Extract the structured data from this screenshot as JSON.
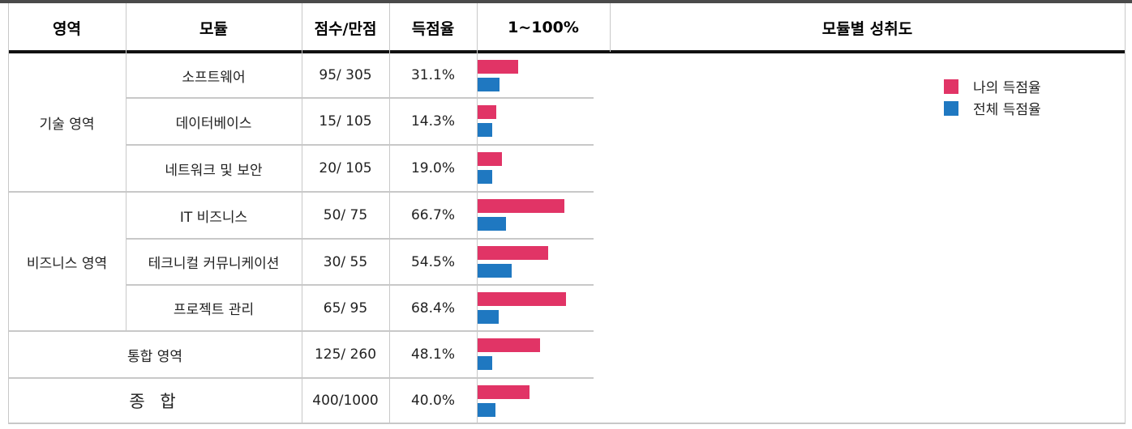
{
  "header": {
    "area": "영역",
    "module": "모듈",
    "score": "점수/만점",
    "rate": "득점율",
    "range": "1~100%",
    "achievement": "모듈별 성취도"
  },
  "areas": {
    "tech": "기술 영역",
    "biz": "비즈니스 영역",
    "integrated": "통합 영역",
    "total": "종 합"
  },
  "rows": [
    {
      "module": "소프트웨어",
      "score": "95/ 305",
      "rate": "31.1%"
    },
    {
      "module": "데이터베이스",
      "score": "15/ 105",
      "rate": "14.3%"
    },
    {
      "module": "네트워크 및 보안",
      "score": "20/ 105",
      "rate": "19.0%"
    },
    {
      "module": "IT 비즈니스",
      "score": "50/ 75",
      "rate": "66.7%"
    },
    {
      "module": "테크니컬 커뮤니케이션",
      "score": "30/ 55",
      "rate": "54.5%"
    },
    {
      "module": "프로젝트 관리",
      "score": "65/ 95",
      "rate": "68.4%"
    },
    {
      "module": "",
      "score": "125/ 260",
      "rate": "48.1%"
    },
    {
      "module": "",
      "score": "400/1000",
      "rate": "40.0%"
    }
  ],
  "chart_data": {
    "type": "bar",
    "orientation": "horizontal",
    "xlim": [
      0,
      100
    ],
    "series": [
      {
        "name": "나의 득점율",
        "color": "#e13466",
        "values": [
          31.1,
          14.3,
          19.0,
          66.7,
          54.5,
          68.4,
          48.1,
          40.0
        ]
      },
      {
        "name": "전체 득점율",
        "color": "#1f78c1",
        "values": [
          17,
          11,
          11,
          22,
          26,
          16,
          11,
          14
        ]
      }
    ],
    "legend_position": "top-right"
  }
}
